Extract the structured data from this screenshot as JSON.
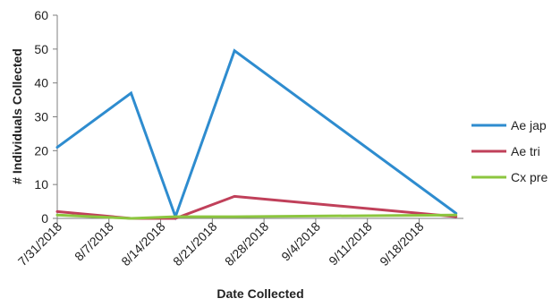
{
  "chart_data": {
    "type": "line",
    "title": "",
    "xlabel": "Date Collected",
    "ylabel": "# Individuals Collected",
    "ylim": [
      0,
      60
    ],
    "yticks": [
      0,
      10,
      20,
      30,
      40,
      50,
      60
    ],
    "xlim": [
      "7/31/2018",
      "9/24/2018"
    ],
    "xticks": [
      "7/31/2018",
      "8/7/2018",
      "8/14/2018",
      "8/21/2018",
      "8/28/2018",
      "9/4/2018",
      "9/11/2018",
      "9/18/2018"
    ],
    "grid": false,
    "legend_position": "right",
    "series": [
      {
        "name": "Ae jap",
        "color": "#2e8ccf",
        "points": [
          {
            "x": "7/31/2018",
            "y": 21
          },
          {
            "x": "8/10/2018",
            "y": 37
          },
          {
            "x": "8/16/2018",
            "y": 0.5
          },
          {
            "x": "8/24/2018",
            "y": 49.5
          },
          {
            "x": "9/23/2018",
            "y": 1.5
          }
        ]
      },
      {
        "name": "Ae tri",
        "color": "#c0405a",
        "points": [
          {
            "x": "7/31/2018",
            "y": 2
          },
          {
            "x": "8/10/2018",
            "y": 0
          },
          {
            "x": "8/16/2018",
            "y": 0
          },
          {
            "x": "8/24/2018",
            "y": 6.5
          },
          {
            "x": "9/23/2018",
            "y": 0.5
          }
        ]
      },
      {
        "name": "Cx pre",
        "color": "#8cc63f",
        "points": [
          {
            "x": "7/31/2018",
            "y": 1
          },
          {
            "x": "8/10/2018",
            "y": 0
          },
          {
            "x": "8/16/2018",
            "y": 0.5
          },
          {
            "x": "8/24/2018",
            "y": 0.5
          },
          {
            "x": "9/23/2018",
            "y": 1
          }
        ]
      }
    ]
  }
}
